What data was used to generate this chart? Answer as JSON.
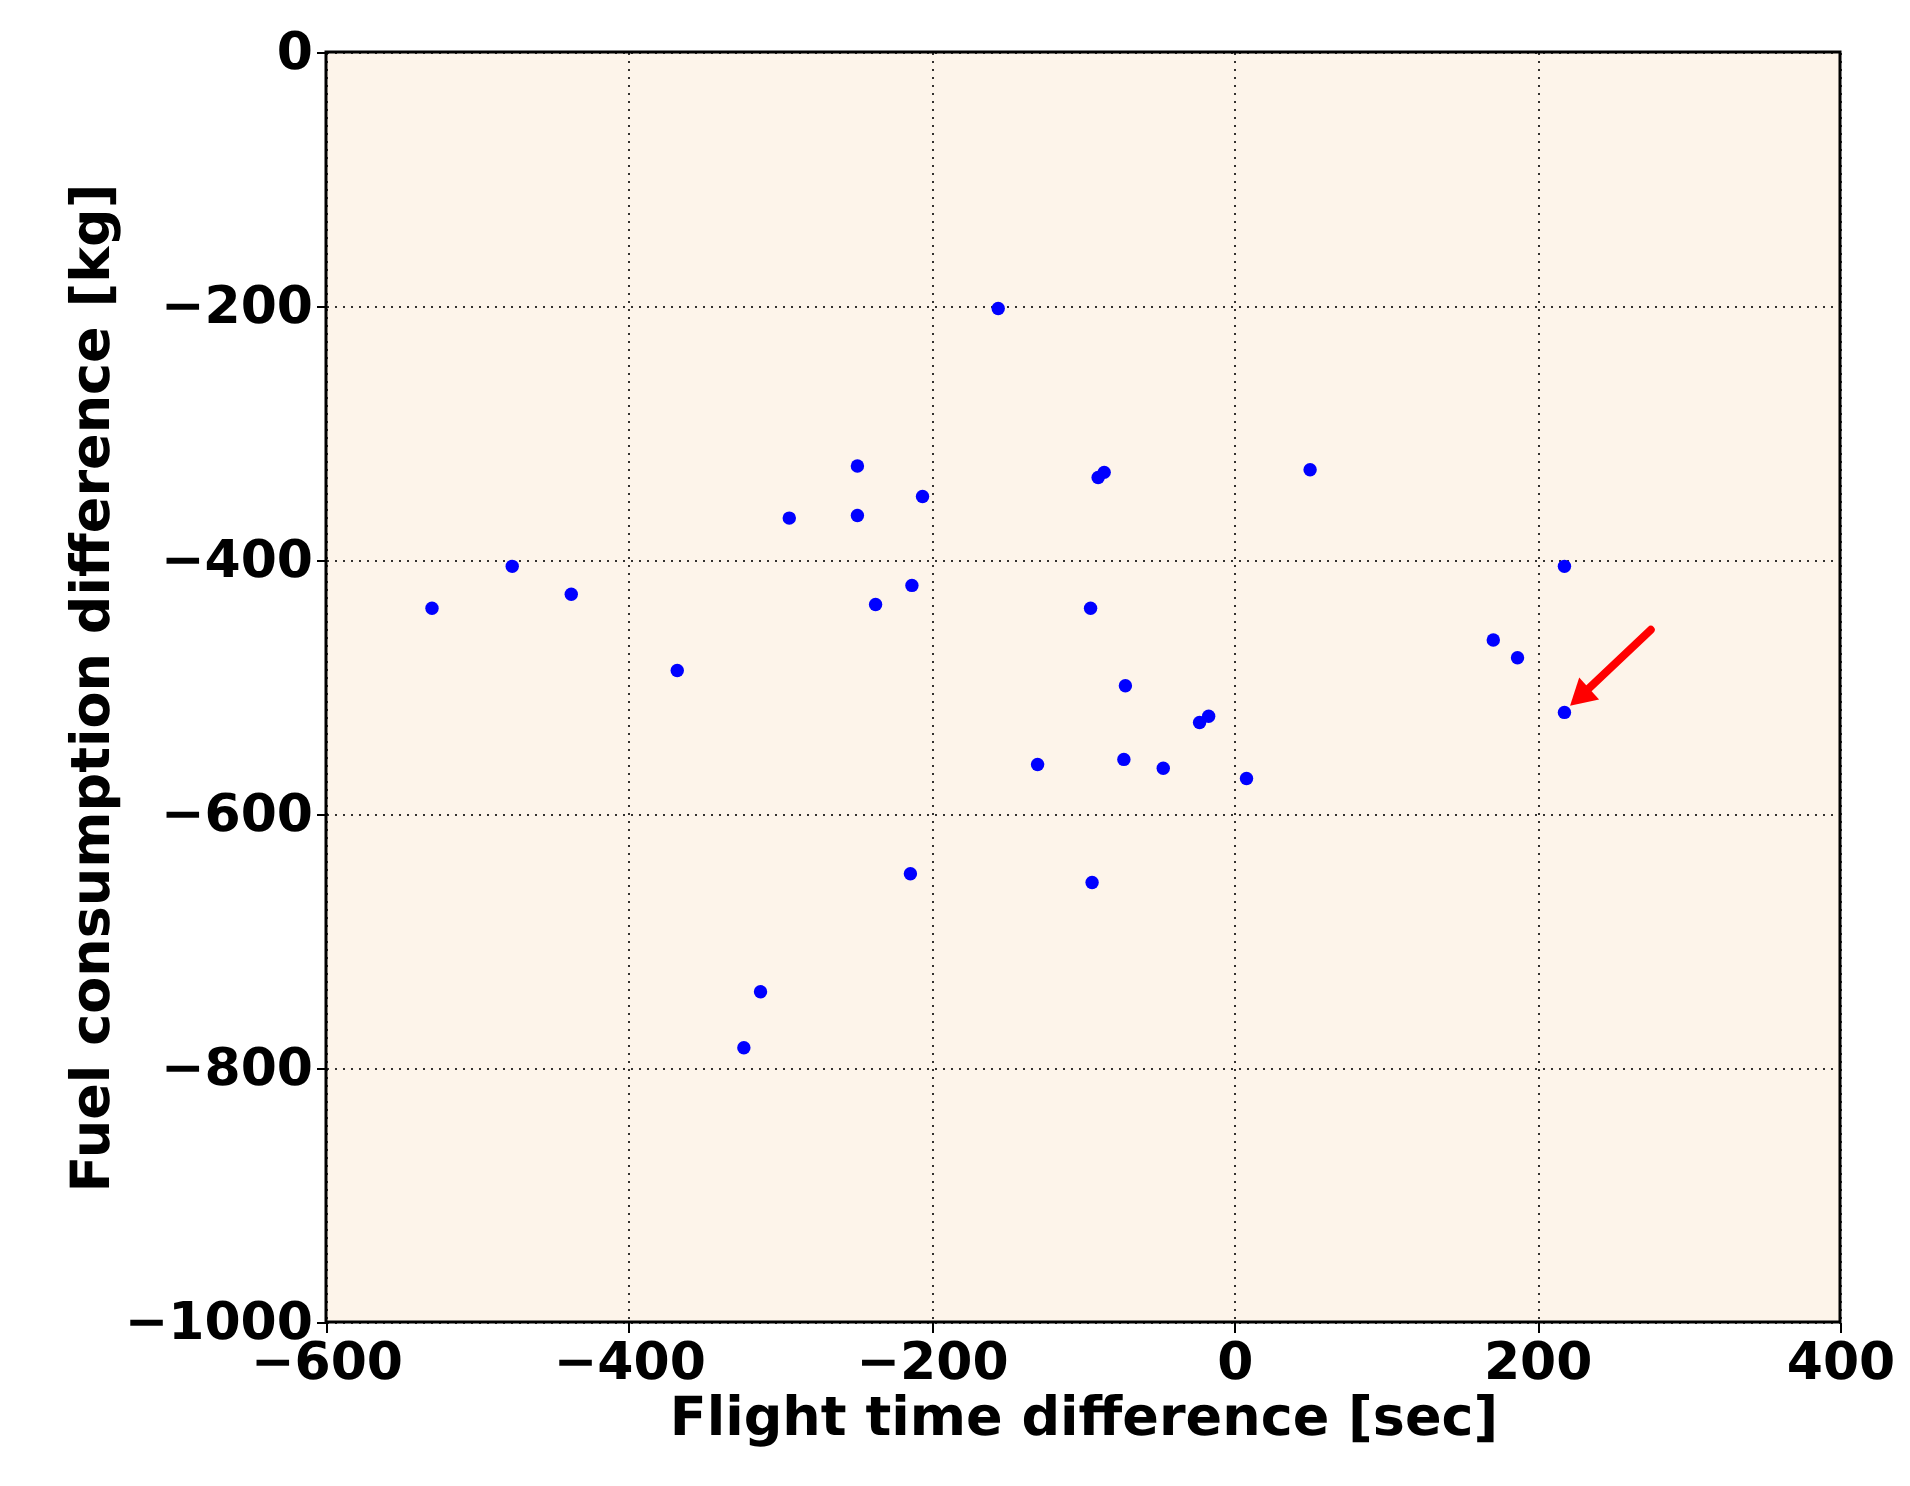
{
  "chart_data": {
    "type": "scatter",
    "xlabel": "Flight time difference [sec]",
    "ylabel": "Fuel consumption difference [kg]",
    "xlim": [
      -600,
      400
    ],
    "xticks": [
      -600,
      -400,
      -200,
      0,
      200,
      400
    ],
    "ylim": [
      -1000,
      0
    ],
    "yticks": [
      -1000,
      -800,
      -600,
      -400,
      -200,
      0
    ],
    "grid": true,
    "marker": "circle",
    "series": [
      {
        "color": "#0000ff",
        "x": [
          -530,
          -477,
          -438,
          -368,
          -294,
          -249,
          -249,
          -237,
          -213,
          -206,
          -214,
          -156,
          -313,
          -324,
          -90,
          -86,
          -95,
          -130,
          -94,
          -72,
          -73,
          -47,
          -23,
          -17,
          8,
          50,
          171,
          187,
          218,
          218
        ],
        "values": [
          -438,
          -405,
          -427,
          -487,
          -367,
          -326,
          -365,
          -435,
          -420,
          -350,
          -647,
          -202,
          -740,
          -784,
          -335,
          -331,
          -438,
          -561,
          -654,
          -499,
          -557,
          -564,
          -528,
          -523,
          -572,
          -329,
          -463,
          -477,
          -405,
          -520
        ]
      }
    ]
  }
}
